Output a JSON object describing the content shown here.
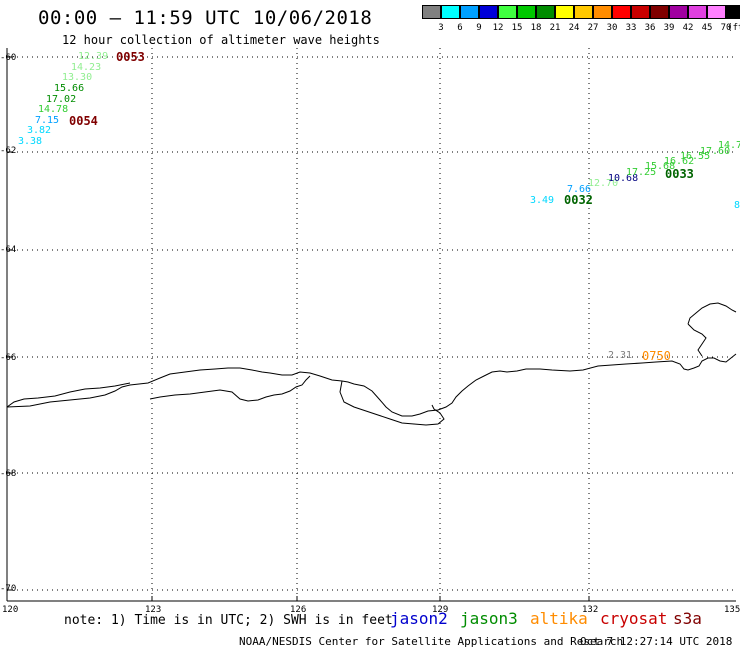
{
  "header": {
    "title": "00:00 – 11:59 UTC 10/06/2018",
    "subtitle": "12 hour collection of altimeter wave heights"
  },
  "legend": {
    "unit": "(ft)",
    "bins": [
      {
        "label": "3",
        "color": "#808080"
      },
      {
        "label": "6",
        "color": "#00ffff"
      },
      {
        "label": "9",
        "color": "#00a0ff"
      },
      {
        "label": "12",
        "color": "#0000d8"
      },
      {
        "label": "15",
        "color": "#40ff40"
      },
      {
        "label": "18",
        "color": "#00c800"
      },
      {
        "label": "21",
        "color": "#008c00"
      },
      {
        "label": "24",
        "color": "#ffff00"
      },
      {
        "label": "27",
        "color": "#ffc800"
      },
      {
        "label": "30",
        "color": "#ff8c00"
      },
      {
        "label": "33",
        "color": "#ff0000"
      },
      {
        "label": "36",
        "color": "#c80000"
      },
      {
        "label": "39",
        "color": "#800000"
      },
      {
        "label": "42",
        "color": "#a000a0"
      },
      {
        "label": "45",
        "color": "#e040e0"
      },
      {
        "label": "70",
        "color": "#ff80ff"
      },
      {
        "label": "",
        "color": "#000000"
      }
    ]
  },
  "map": {
    "lat_labels": [
      "-60",
      "-62",
      "-64",
      "-66",
      "-68",
      "-70"
    ],
    "lon_labels": [
      "120",
      "123",
      "126",
      "129",
      "132",
      "135"
    ]
  },
  "observations": {
    "track_0053": {
      "pass_label": "0053",
      "pass_color": "#800000",
      "values": [
        {
          "text": "12.39",
          "color": "#90ee90"
        },
        {
          "text": "14.23",
          "color": "#90ee90"
        },
        {
          "text": "13.30",
          "color": "#90ee90"
        },
        {
          "text": "15.66",
          "color": "#008c00"
        },
        {
          "text": "17.02",
          "color": "#008c00"
        },
        {
          "text": "14.78",
          "color": "#32cd32"
        }
      ]
    },
    "track_0054": {
      "pass_label": "0054",
      "pass_color": "#800000",
      "values": [
        {
          "text": "7.15",
          "color": "#00a0ff"
        },
        {
          "text": "3.82",
          "color": "#00d8ff"
        },
        {
          "text": "3.38",
          "color": "#00d8ff"
        }
      ]
    },
    "track_0032": {
      "pass_label": "0032",
      "pass_color": "#006400",
      "values": [
        {
          "text": "3.49",
          "color": "#00d8ff"
        },
        {
          "text": "7.66",
          "color": "#00a0ff"
        },
        {
          "text": "12.70",
          "color": "#90ee90"
        },
        {
          "text": "10.68",
          "color": "#000080"
        }
      ]
    },
    "track_0033": {
      "pass_label": "0033",
      "pass_color": "#006400",
      "values": [
        {
          "text": "17.25",
          "color": "#32cd32"
        },
        {
          "text": "15.68",
          "color": "#32cd32"
        },
        {
          "text": "16.62",
          "color": "#32cd32"
        },
        {
          "text": "16.55",
          "color": "#32cd32"
        },
        {
          "text": "17.60",
          "color": "#32cd32"
        },
        {
          "text": "14.7",
          "color": "#32cd32"
        }
      ]
    },
    "track_0750": {
      "pass_label": "0750",
      "pass_color": "#ff8c00",
      "values": [
        {
          "text": "2.31",
          "color": "#808080"
        }
      ]
    },
    "edge_fragment": {
      "text": "8",
      "color": "#00d8ff"
    }
  },
  "footer": {
    "note": "note: 1) Time is in UTC; 2) SWH is in feet",
    "satellites": [
      {
        "name": "jason2",
        "color": "#0000cd"
      },
      {
        "name": "jason3",
        "color": "#008c00"
      },
      {
        "name": "altika",
        "color": "#ff8c00"
      },
      {
        "name": "cryosat",
        "color": "#c80000"
      },
      {
        "name": "s3a",
        "color": "#800000"
      }
    ],
    "credit": "NOAA/NESDIS Center for Satellite Applications and Research",
    "timestamp": "Oct  7 12:27:14 UTC 2018"
  }
}
